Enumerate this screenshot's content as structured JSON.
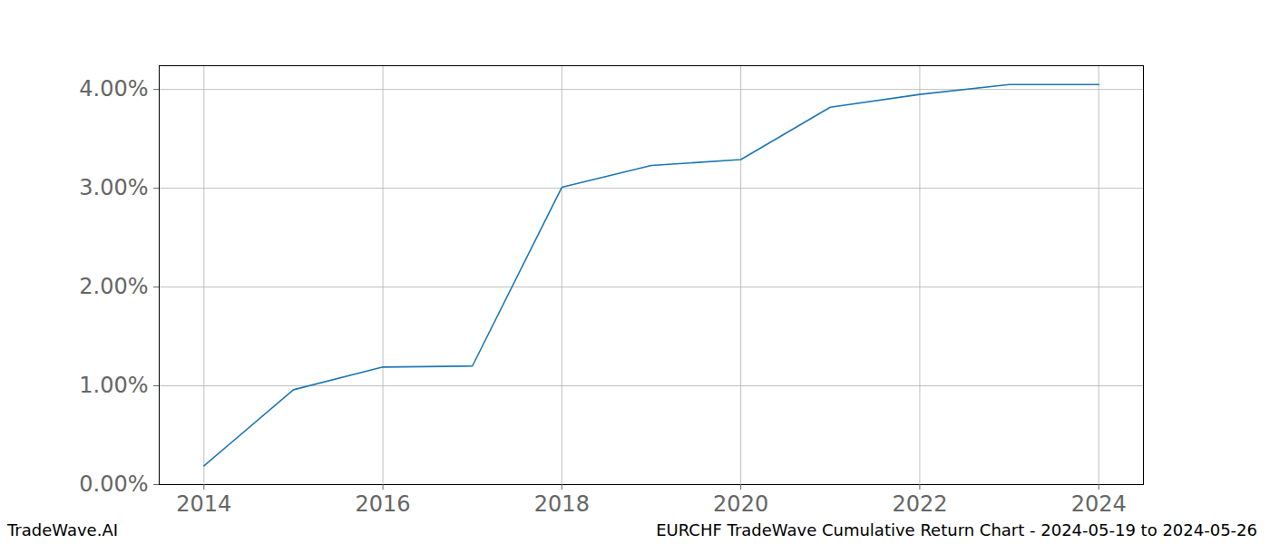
{
  "chart_data": {
    "type": "line",
    "title": "EURCHF TradeWave Cumulative Return Chart - 2024-05-19 to 2024-05-26",
    "source": "TradeWave.AI",
    "x": [
      2014,
      2015,
      2016,
      2017,
      2018,
      2019,
      2020,
      2021,
      2022,
      2023,
      2024
    ],
    "series": [
      {
        "name": "Cumulative Return",
        "color": "#1f77b4",
        "values": [
          0.19,
          0.96,
          1.19,
          1.2,
          3.01,
          3.23,
          3.29,
          3.82,
          3.95,
          4.05,
          4.05
        ]
      }
    ],
    "xlim": [
      2013.5,
      2024.5
    ],
    "xticks": [
      2014,
      2016,
      2018,
      2020,
      2022,
      2024
    ],
    "ylim": [
      0,
      4.24
    ],
    "yticks": [
      {
        "value": 0,
        "label": "0.00%"
      },
      {
        "value": 1,
        "label": "1.00%"
      },
      {
        "value": 2,
        "label": "2.00%"
      },
      {
        "value": 3,
        "label": "3.00%"
      },
      {
        "value": 4,
        "label": "4.00%"
      }
    ],
    "grid": true
  }
}
